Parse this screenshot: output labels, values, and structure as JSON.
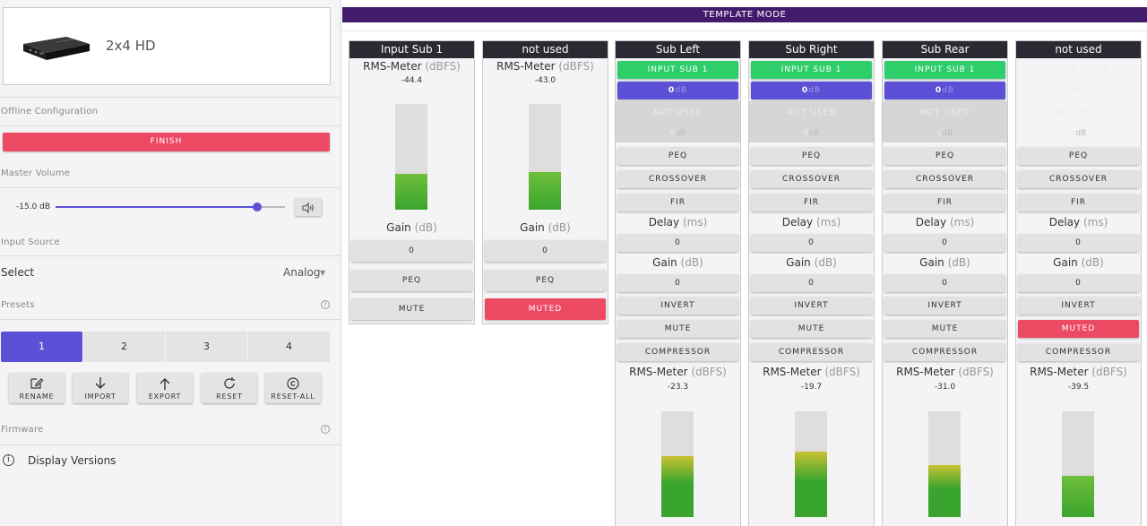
{
  "device": {
    "name": "2x4 HD"
  },
  "sidebar": {
    "offline_label": "Offline Configuration",
    "finish_label": "FINISH",
    "master_volume_label": "Master Volume",
    "master_volume_value": "-15.0 dB",
    "master_volume_level": 0.88,
    "input_source_label": "Input Source",
    "select_label": "Select",
    "select_value": "Analog",
    "presets_label": "Presets",
    "presets": [
      "1",
      "2",
      "3",
      "4"
    ],
    "active_preset": "1",
    "tools": [
      {
        "label": "RENAME",
        "icon": "edit-icon"
      },
      {
        "label": "IMPORT",
        "icon": "arrow-down-icon"
      },
      {
        "label": "EXPORT",
        "icon": "arrow-up-icon"
      },
      {
        "label": "RESET",
        "icon": "refresh-icon"
      },
      {
        "label": "RESET-ALL",
        "icon": "copyright-reset-icon"
      }
    ],
    "firmware_label": "Firmware",
    "display_versions_label": "Display Versions",
    "help_glyph": "?",
    "info_glyph": "i"
  },
  "banner": {
    "text": "TEMPLATE MODE"
  },
  "labels": {
    "rms_meter": "RMS-Meter",
    "dbfs": "(dBFS)",
    "gain": "Gain",
    "db": "(dB)",
    "delay": "Delay",
    "ms": "(ms)",
    "db_unit": "dB"
  },
  "inputs": [
    {
      "title": "Input Sub 1",
      "rms": "-44.4",
      "level": 0.34,
      "gain": "0",
      "peq": "PEQ",
      "mute": "MUTE",
      "muted": false
    },
    {
      "title": "not used",
      "rms": "-43.0",
      "level": 0.36,
      "gain": "0",
      "peq": "PEQ",
      "mute": "MUTED",
      "muted": true
    }
  ],
  "outputs": [
    {
      "title": "Sub Left",
      "source1": "INPUT SUB 1",
      "source1_gain": "0",
      "source2": "NOT USED",
      "source2_gain": "0",
      "peq": "PEQ",
      "crossover": "CROSSOVER",
      "fir": "FIR",
      "delay": "0",
      "gain": "0",
      "invert": "INVERT",
      "mute": "MUTE",
      "muted": false,
      "compressor": "COMPRESSOR",
      "rms": "-23.3",
      "level": 0.58,
      "active": true
    },
    {
      "title": "Sub Right",
      "source1": "INPUT SUB 1",
      "source1_gain": "0",
      "source2": "NOT USED",
      "source2_gain": "0",
      "peq": "PEQ",
      "crossover": "CROSSOVER",
      "fir": "FIR",
      "delay": "0",
      "gain": "0",
      "invert": "INVERT",
      "mute": "MUTE",
      "muted": false,
      "compressor": "COMPRESSOR",
      "rms": "-19.7",
      "level": 0.62,
      "active": true
    },
    {
      "title": "Sub Rear",
      "source1": "INPUT SUB 1",
      "source1_gain": "0",
      "source2": "NOT USED",
      "source2_gain": "0",
      "peq": "PEQ",
      "crossover": "CROSSOVER",
      "fir": "FIR",
      "delay": "0",
      "gain": "0",
      "invert": "INVERT",
      "mute": "MUTE",
      "muted": false,
      "compressor": "COMPRESSOR",
      "rms": "-31.0",
      "level": 0.49,
      "active": true
    },
    {
      "title": "not used",
      "source1": "INPUT SUB 1",
      "source1_gain": "0",
      "source2": "NOT USED",
      "source2_gain": "0",
      "peq": "PEQ",
      "crossover": "CROSSOVER",
      "fir": "FIR",
      "delay": "0",
      "gain": "0",
      "invert": "INVERT",
      "mute": "MUTED",
      "muted": true,
      "compressor": "COMPRESSOR",
      "rms": "-39.5",
      "level": 0.39,
      "active": false
    }
  ],
  "colors": {
    "accent": "#5b50d6",
    "banner": "#431b6d",
    "mute_active": "#ec4a63",
    "source_active": "#2ecf6a",
    "meter_green": "#3aa52e",
    "meter_yellow": "#c9c232",
    "channel_header": "#2a2a32"
  }
}
